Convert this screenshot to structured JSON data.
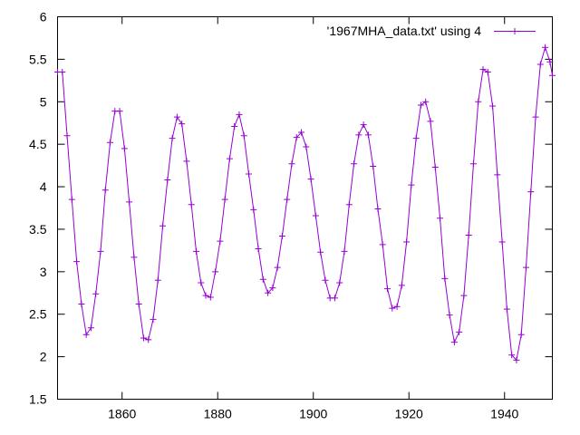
{
  "chart_data": {
    "type": "line",
    "title": "",
    "xlabel": "",
    "ylabel": "",
    "xlim": [
      1846.5,
      1950
    ],
    "ylim": [
      1.5,
      6
    ],
    "xticks": [
      1860,
      1880,
      1900,
      1920,
      1940
    ],
    "yticks": [
      1.5,
      2,
      2.5,
      3,
      3.5,
      4,
      4.5,
      5,
      5.5,
      6
    ],
    "ytick_labels": [
      "1.5",
      "2",
      "2.5",
      "3",
      "3.5",
      "4",
      "4.5",
      "5",
      "5.5",
      "6"
    ],
    "grid": false,
    "legend_position": "top-right",
    "series": [
      {
        "name": "'1967MHA_data.txt' using 4",
        "color": "#9400d3",
        "marker": "plus",
        "x": [
          1846.5,
          1847.5,
          1848.5,
          1849.5,
          1850.5,
          1851.5,
          1852.5,
          1853.5,
          1854.5,
          1855.5,
          1856.5,
          1857.5,
          1858.5,
          1859.5,
          1860.5,
          1861.5,
          1862.5,
          1863.5,
          1864.5,
          1865.5,
          1866.5,
          1867.5,
          1868.5,
          1869.5,
          1870.5,
          1871.5,
          1872.5,
          1873.5,
          1874.5,
          1875.5,
          1876.5,
          1877.5,
          1878.5,
          1879.5,
          1880.5,
          1881.5,
          1882.5,
          1883.5,
          1884.5,
          1885.5,
          1886.5,
          1887.5,
          1888.5,
          1889.5,
          1890.5,
          1891.5,
          1892.5,
          1893.5,
          1894.5,
          1895.5,
          1896.5,
          1897.5,
          1898.5,
          1899.5,
          1900.5,
          1901.5,
          1902.5,
          1903.5,
          1904.5,
          1905.5,
          1906.5,
          1907.5,
          1908.5,
          1909.5,
          1910.5,
          1911.5,
          1912.5,
          1913.5,
          1914.5,
          1915.5,
          1916.5,
          1917.5,
          1918.5,
          1919.5,
          1920.5,
          1921.5,
          1922.5,
          1923.5,
          1924.5,
          1925.5,
          1926.5,
          1927.5,
          1928.5,
          1929.5,
          1930.5,
          1931.5,
          1932.5,
          1933.5,
          1934.5,
          1935.5,
          1936.5,
          1937.5,
          1938.5,
          1939.5,
          1940.5,
          1941.5,
          1942.5,
          1943.5,
          1944.5,
          1945.5,
          1946.5,
          1947.5,
          1948.5,
          1949.5,
          1950
        ],
        "values": [
          5.35,
          5.35,
          4.6,
          3.85,
          3.12,
          2.62,
          2.26,
          2.34,
          2.74,
          3.24,
          3.96,
          4.52,
          4.89,
          4.89,
          4.45,
          3.82,
          3.17,
          2.62,
          2.22,
          2.2,
          2.44,
          2.9,
          3.54,
          4.08,
          4.57,
          4.82,
          4.74,
          4.3,
          3.79,
          3.24,
          2.87,
          2.72,
          2.7,
          3.0,
          3.36,
          3.85,
          4.33,
          4.71,
          4.85,
          4.6,
          4.15,
          3.73,
          3.27,
          2.91,
          2.75,
          2.81,
          3.05,
          3.42,
          3.85,
          4.27,
          4.58,
          4.64,
          4.47,
          4.09,
          3.66,
          3.23,
          2.9,
          2.69,
          2.69,
          2.87,
          3.24,
          3.79,
          4.27,
          4.61,
          4.73,
          4.61,
          4.24,
          3.74,
          3.32,
          2.8,
          2.57,
          2.59,
          2.84,
          3.35,
          4.02,
          4.57,
          4.96,
          5.0,
          4.77,
          4.23,
          3.63,
          2.92,
          2.49,
          2.17,
          2.29,
          2.72,
          3.43,
          4.27,
          5.0,
          5.38,
          5.35,
          4.95,
          4.14,
          3.35,
          2.56,
          2.02,
          1.96,
          2.26,
          3.05,
          3.94,
          4.82,
          5.44,
          5.64,
          5.47,
          5.31
        ]
      }
    ]
  }
}
